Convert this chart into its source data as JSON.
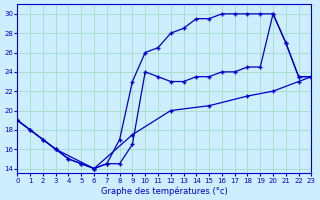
{
  "title": "Graphe des températures (°c)",
  "bg_color": "#cceeff",
  "grid_color": "#aaddcc",
  "line_color": "#0000cc",
  "xlim": [
    0,
    23
  ],
  "ylim": [
    13.5,
    31
  ],
  "xticks": [
    0,
    1,
    2,
    3,
    4,
    5,
    6,
    7,
    8,
    9,
    10,
    11,
    12,
    13,
    14,
    15,
    16,
    17,
    18,
    19,
    20,
    21,
    22,
    23
  ],
  "yticks": [
    14,
    16,
    18,
    20,
    22,
    24,
    26,
    28,
    30
  ],
  "line1_x": [
    0,
    1,
    2,
    3,
    4,
    5,
    6,
    7,
    8,
    9,
    10,
    11,
    12,
    13,
    14,
    15,
    16,
    17,
    18,
    19,
    20,
    21,
    22,
    23
  ],
  "line1_y": [
    19,
    18,
    17,
    16,
    15,
    14.5,
    14,
    14.5,
    17,
    23,
    26,
    26.5,
    28,
    28.5,
    29.5,
    29.5,
    30,
    30,
    30,
    30,
    30,
    27,
    23.5,
    23.5
  ],
  "line2_x": [
    0,
    1,
    2,
    3,
    4,
    5,
    6,
    7,
    8,
    9,
    10,
    11,
    12,
    13,
    14,
    15,
    16,
    17,
    18,
    19,
    20,
    21,
    22,
    23
  ],
  "line2_y": [
    19,
    18,
    17,
    16,
    15,
    14.5,
    14,
    14.5,
    14.5,
    16.5,
    24,
    23.5,
    23,
    23,
    23.5,
    23.5,
    24,
    24,
    24.5,
    24.5,
    30,
    27,
    23.5,
    23.5
  ],
  "line3_x": [
    0,
    3,
    6,
    9,
    12,
    15,
    18,
    20,
    22,
    23
  ],
  "line3_y": [
    19,
    16,
    14,
    17.5,
    20,
    20.5,
    21.5,
    22,
    23,
    23.5
  ]
}
